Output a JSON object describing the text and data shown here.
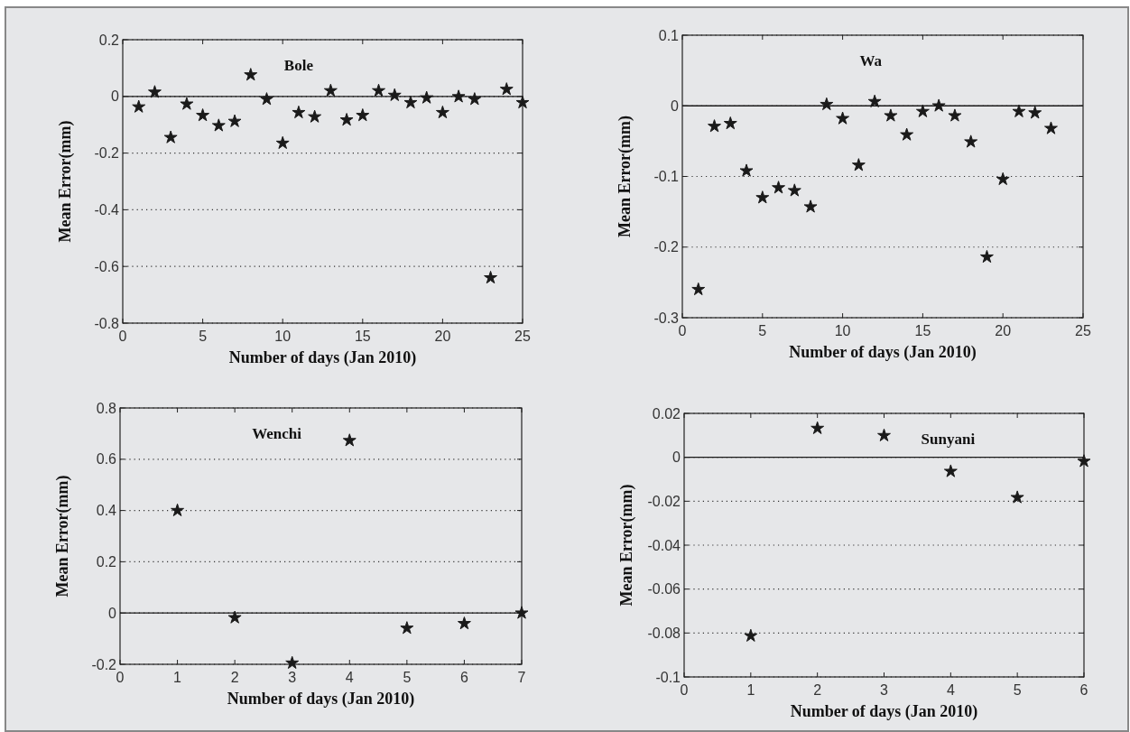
{
  "chart_data": [
    {
      "type": "scatter",
      "title": "Bole",
      "xlabel": "Number of days (Jan 2010)",
      "ylabel": "Mean Error(mm)",
      "x": [
        1,
        2,
        3,
        4,
        5,
        6,
        7,
        8,
        9,
        10,
        11,
        12,
        13,
        14,
        15,
        16,
        17,
        18,
        19,
        20,
        21,
        22,
        23,
        24,
        25
      ],
      "series": [
        {
          "color": "#1a1a1a",
          "values": [
            -0.037,
            0.015,
            -0.145,
            -0.027,
            -0.067,
            -0.103,
            -0.088,
            0.076,
            -0.01,
            -0.165,
            -0.057,
            -0.072,
            0.02,
            -0.083,
            -0.067,
            0.02,
            0.004,
            -0.022,
            -0.005,
            -0.057,
            -0.001,
            -0.01,
            -0.64,
            0.025,
            -0.022
          ]
        }
      ],
      "xlim": [
        0,
        25
      ],
      "xticks": [
        0,
        5,
        10,
        15,
        20,
        25
      ],
      "ylim": [
        -0.8,
        0.2
      ],
      "yticks": [
        -0.8,
        -0.6,
        -0.4,
        -0.2,
        0,
        0.2
      ],
      "grid": "y",
      "marker": "star",
      "ref_lines": [
        {
          "axis": "y",
          "value": 0,
          "color": "#1a1a1a"
        }
      ]
    },
    {
      "type": "scatter",
      "title": "Wa",
      "xlabel": "Number of days (Jan 2010)",
      "ylabel": "Mean Error(mm)",
      "x": [
        1,
        2,
        3,
        4,
        5,
        6,
        7,
        8,
        9,
        10,
        11,
        12,
        13,
        14,
        15,
        16,
        17,
        18,
        19,
        20,
        21,
        22,
        23
      ],
      "series": [
        {
          "color": "#1a1a1a",
          "values": [
            -0.26,
            -0.029,
            -0.025,
            -0.092,
            -0.13,
            -0.116,
            -0.12,
            -0.143,
            0.002,
            -0.018,
            -0.084,
            0.006,
            -0.014,
            -0.041,
            -0.008,
            0,
            -0.014,
            -0.051,
            -0.214,
            -0.104,
            -0.008,
            -0.01,
            -0.032
          ]
        }
      ],
      "xlim": [
        0,
        25
      ],
      "xticks": [
        0,
        5,
        10,
        15,
        20,
        25
      ],
      "ylim": [
        -0.3,
        0.1
      ],
      "yticks": [
        -0.3,
        -0.2,
        -0.1,
        0,
        0.1
      ],
      "grid": "y",
      "marker": "star",
      "ref_lines": [
        {
          "axis": "y",
          "value": 0,
          "color": "#1a1a1a"
        }
      ]
    },
    {
      "type": "scatter",
      "title": "Wenchi",
      "xlabel": "Number of days (Jan 2010)",
      "ylabel": "Mean Error(mm)",
      "x": [
        1,
        2,
        3,
        4,
        5,
        6,
        7
      ],
      "series": [
        {
          "color": "#1a1a1a",
          "values": [
            0.4,
            -0.018,
            -0.195,
            0.673,
            -0.059,
            -0.041,
            0
          ]
        }
      ],
      "xlim": [
        0,
        7
      ],
      "xticks": [
        0,
        1,
        2,
        3,
        4,
        5,
        6,
        7
      ],
      "ylim": [
        -0.2,
        0.8
      ],
      "yticks": [
        -0.2,
        0,
        0.2,
        0.4,
        0.6,
        0.8
      ],
      "grid": "y",
      "marker": "star",
      "ref_lines": [
        {
          "axis": "y",
          "value": 0,
          "color": "#1a1a1a"
        }
      ]
    },
    {
      "type": "scatter",
      "title": "Sunyani",
      "xlabel": "Number of days (Jan 2010)",
      "ylabel": "Mean Error(mm)",
      "x": [
        1,
        2,
        3,
        4,
        5,
        6
      ],
      "series": [
        {
          "color": "#1a1a1a",
          "values": [
            -0.0813,
            0.0132,
            0.0099,
            -0.0064,
            -0.0183,
            -0.0018
          ]
        }
      ],
      "xlim": [
        0,
        6
      ],
      "xticks": [
        0,
        1,
        2,
        3,
        4,
        5,
        6
      ],
      "ylim": [
        -0.1,
        0.02
      ],
      "yticks": [
        -0.1,
        -0.08,
        -0.06,
        -0.04,
        -0.02,
        0,
        0.02
      ],
      "grid": "y",
      "marker": "star",
      "ref_lines": [
        {
          "axis": "y",
          "value": 0,
          "color": "#1a1a1a"
        }
      ]
    }
  ]
}
